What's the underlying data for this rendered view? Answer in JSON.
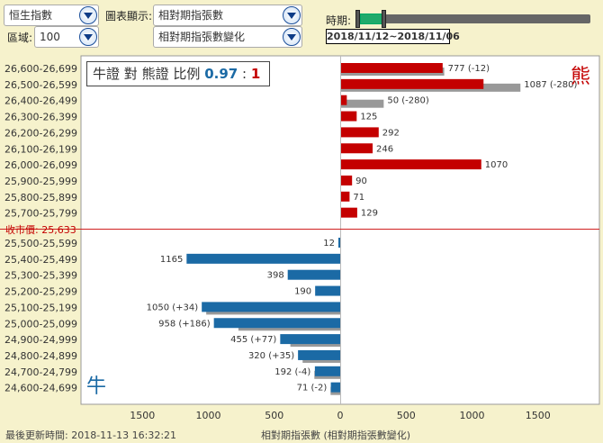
{
  "controls": {
    "underlying": "恒生指數",
    "chart_display_label": "圖表顯示:",
    "chart_display": "相對期指張數",
    "zone_label": "區域:",
    "zone": "100",
    "chart_display_2": "相對期指張數變化",
    "period_label": "時期:",
    "date_range": "2018/11/12~2018/11/06"
  },
  "ratio": {
    "bull": "牛證",
    "vs": "對",
    "bear": "熊證",
    "label": "比例",
    "bull_value": "0.97",
    "sep": ":",
    "bear_value": "1"
  },
  "bear_char": "熊",
  "bull_char": "牛",
  "close_label": "收市價: 25,633",
  "footer": {
    "update_time": "最後更新時間: 2018-11-13 16:32:21"
  },
  "colors": {
    "bear": "#c40000",
    "bull": "#1b6aa5",
    "previous": "#999999",
    "close_line": "#d02020"
  },
  "chart_data": {
    "type": "bar",
    "orientation": "horizontal",
    "xlabel": "相對期指張數 (相對期指張數變化)",
    "xlim": [
      -1900,
      1900
    ],
    "xticks": [
      1500,
      1000,
      500,
      0,
      500,
      1000,
      1500
    ],
    "close_price": 25633,
    "bear": [
      {
        "range": "26,600-26,699",
        "value": 777,
        "label": "777 (-12)",
        "previous": 789
      },
      {
        "range": "26,500-26,599",
        "value": 1087,
        "label": "1087 (-280)",
        "previous": 1367
      },
      {
        "range": "26,400-26,499",
        "value": 50,
        "label": "50 (-280)",
        "previous": 330
      },
      {
        "range": "26,300-26,399",
        "value": 125,
        "label": "125"
      },
      {
        "range": "26,200-26,299",
        "value": 292,
        "label": "292"
      },
      {
        "range": "26,100-26,199",
        "value": 246,
        "label": "246"
      },
      {
        "range": "26,000-26,099",
        "value": 1070,
        "label": "1070"
      },
      {
        "range": "25,900-25,999",
        "value": 90,
        "label": "90"
      },
      {
        "range": "25,800-25,899",
        "value": 71,
        "label": "71"
      },
      {
        "range": "25,700-25,799",
        "value": 129,
        "label": "129"
      }
    ],
    "bull": [
      {
        "range": "25,500-25,599",
        "value": 12,
        "label": "12"
      },
      {
        "range": "25,400-25,499",
        "value": 1165,
        "label": "1165"
      },
      {
        "range": "25,300-25,399",
        "value": 398,
        "label": "398"
      },
      {
        "range": "25,200-25,299",
        "value": 190,
        "label": "190"
      },
      {
        "range": "25,100-25,199",
        "value": 1050,
        "label": "1050 (+34)",
        "previous": 1016
      },
      {
        "range": "25,000-25,099",
        "value": 958,
        "label": "958 (+186)",
        "previous": 772
      },
      {
        "range": "24,900-24,999",
        "value": 455,
        "label": "455 (+77)",
        "previous": 378
      },
      {
        "range": "24,800-24,899",
        "value": 320,
        "label": "320 (+35)",
        "previous": 285
      },
      {
        "range": "24,700-24,799",
        "value": 192,
        "label": "192 (-4)",
        "previous": 196
      },
      {
        "range": "24,600-24,699",
        "value": 71,
        "label": "71 (-2)",
        "previous": 73
      }
    ]
  }
}
